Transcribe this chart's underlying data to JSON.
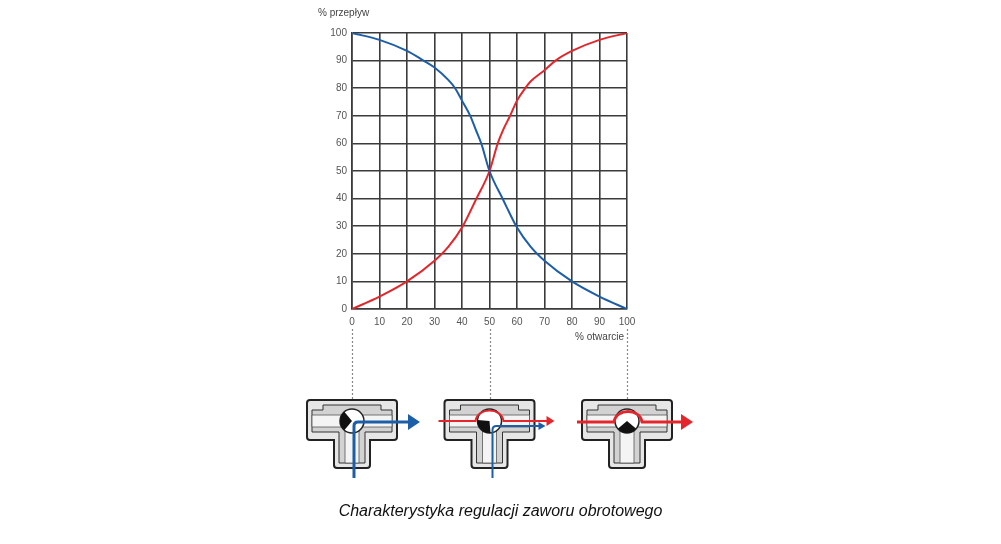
{
  "chart_data": {
    "type": "line",
    "xlabel": "% otwarcie",
    "ylabel": "% przepływ",
    "series": [
      {
        "color": "#1c5ea8",
        "x": [
          0,
          10,
          20,
          26,
          30,
          35,
          37.5,
          40,
          43,
          45,
          47,
          50,
          55,
          60,
          65,
          70,
          80,
          90,
          100
        ],
        "values": [
          100,
          97.5,
          93.5,
          90,
          87.5,
          83,
          80,
          75.5,
          70,
          65,
          60,
          50,
          39.5,
          29.5,
          22.5,
          17.5,
          10,
          4.5,
          0
        ]
      },
      {
        "color": "#e4262c",
        "x": [
          0,
          10,
          20,
          30,
          35,
          40,
          45,
          50,
          53,
          55,
          57.5,
          60,
          63,
          65,
          70,
          74,
          80,
          90,
          100
        ],
        "values": [
          0,
          4.5,
          10,
          17.5,
          22.5,
          29.5,
          39.5,
          50,
          60,
          65,
          70,
          75.5,
          80,
          82.5,
          86.5,
          90,
          93.5,
          97.5,
          100
        ]
      }
    ],
    "xlim": [
      0,
      100
    ],
    "ylim": [
      0,
      100
    ],
    "xticks": [
      0,
      10,
      20,
      30,
      40,
      50,
      60,
      70,
      80,
      90,
      100
    ],
    "yticks": [
      0,
      10,
      20,
      30,
      40,
      50,
      60,
      70,
      80,
      90,
      100
    ],
    "grid": true,
    "marker": "none",
    "annotations": [
      "Charakterystyka regulacji zaworu obrotowego"
    ]
  }
}
